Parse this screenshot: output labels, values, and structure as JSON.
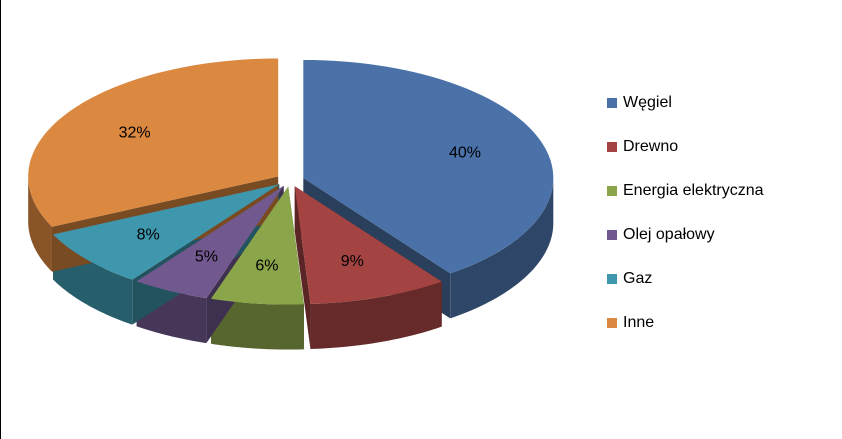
{
  "chart_data": {
    "type": "pie",
    "categories": [
      "Węgiel",
      "Drewno",
      "Energia elektryczna",
      "Olej opałowy",
      "Gaz",
      "Inne"
    ],
    "values": [
      40,
      9,
      6,
      5,
      8,
      32
    ],
    "value_labels": [
      "40%",
      "9%",
      "6%",
      "5%",
      "8%",
      "32%"
    ],
    "colors": [
      "#4a72a8",
      "#a34442",
      "#8aa54a",
      "#71588f",
      "#3f97ad",
      "#db8840"
    ],
    "legend": "right"
  }
}
